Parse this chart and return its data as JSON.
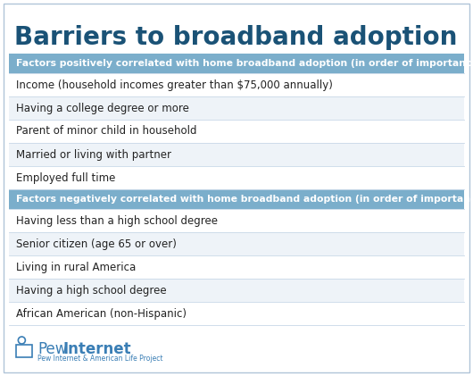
{
  "title": "Barriers to broadband adoption",
  "title_color": "#1a5276",
  "title_fontsize": 20,
  "background_color": "#ffffff",
  "outer_border_color": "#b0c4d8",
  "section1_header": "Factors positively correlated with home broadband adoption (in order of importance)",
  "section2_header": "Factors negatively correlated with home broadband adoption (in order of importance)",
  "header_bg_color": "#7baecb",
  "header_text_color": "#ffffff",
  "header_fontsize": 7.8,
  "row_bg_color_odd": "#eef3f8",
  "row_bg_color_even": "#ffffff",
  "row_separator_color": "#c8d8e8",
  "row_text_color": "#222222",
  "row_fontsize": 8.5,
  "positive_items": [
    "Income (household incomes greater than $75,000 annually)",
    "Having a college degree or more",
    "Parent of minor child in household",
    "Married or living with partner",
    "Employed full time"
  ],
  "negative_items": [
    "Having less than a high school degree",
    "Senior citizen (age 65 or over)",
    "Living in rural America",
    "Having a high school degree",
    "African American (non-Hispanic)"
  ],
  "logo_text_pew": "Pew",
  "logo_text_internet": "Internet",
  "logo_subtext": "Pew Internet & American Life Project",
  "logo_color": "#3a7eb5"
}
